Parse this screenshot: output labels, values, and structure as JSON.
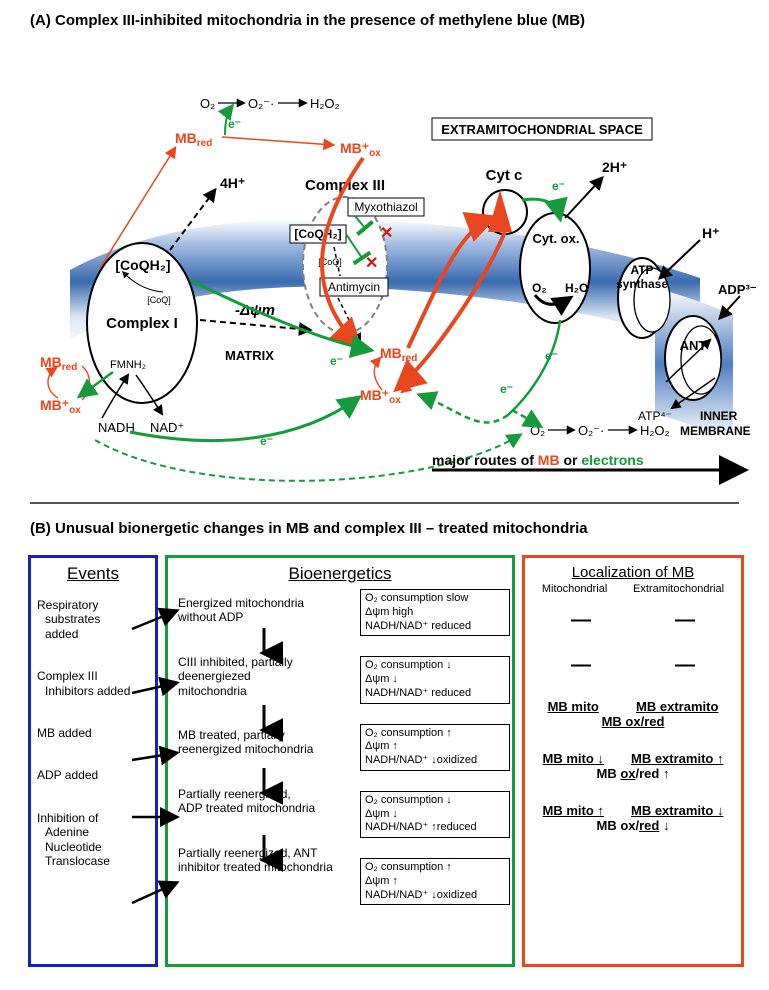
{
  "panelA": {
    "title": "(A)   Complex III-inhibited mitochondria in the presence of methylene blue (MB)",
    "labels": {
      "extra_space": "EXTRAMITOCHONDRIAL SPACE",
      "matrix": "MATRIX",
      "inner_membrane": "INNER\nMEMBRANE",
      "complexI": "Complex I",
      "complexIII": "Complex III",
      "cytc": "Cyt c",
      "cytox": "Cyt. ox.",
      "atp_synthase": "ATP\nsynthase",
      "ant": "ANT",
      "coqh2_a": "[CoQH₂]",
      "coq_small_a": "[CoQ]",
      "coqh2_b": "[CoQH₂]",
      "coq_small_b": "[CoQ]",
      "myxothiazol": "Myxothiazol",
      "antimycin": "Antimycin",
      "dpsim": "-Δψm",
      "fmnh2": "FMNH₂",
      "nadh": "NADH",
      "nad": "NAD⁺",
      "o2_top": "O₂",
      "o2m_top": "O₂⁻·",
      "h2o2_top": "H₂O₂",
      "o2_bot": "O₂",
      "o2m_bot": "O₂⁻·",
      "h2o2_bot": "H₂O₂",
      "o2_cytox": "O₂",
      "h2o_cytox": "H₂O",
      "h4": "4H⁺",
      "h2": "2H⁺",
      "h1": "H⁺",
      "adp": "ADP³⁻",
      "atp": "ATP⁴⁻",
      "e": "e⁻",
      "mb_red": "MBred",
      "mb_ox": "MB⁺ox",
      "legend_pre": "major routes of ",
      "legend_mb": "MB",
      "legend_mid": " or ",
      "legend_e": "electrons"
    },
    "colors": {
      "membrane_top": "#9db8e0",
      "membrane_mid": "#3a6bb0",
      "membrane_bot": "#eef3fb",
      "mb": "#e8471f",
      "electron": "#159a3c",
      "text": "#000000",
      "gray": "#808080",
      "xmark": "#d11414",
      "inhibitor": "#159a3c"
    }
  },
  "panelB": {
    "title": "(B)   Unusual bionergetic changes in MB and complex III – treated mitochondria",
    "colors": {
      "events_border": "#1420c8",
      "bio_border": "#159a3c",
      "loc_border": "#e8471f"
    },
    "events": {
      "head": "Events",
      "items": [
        "Respiratory\nsubstrates\nadded",
        "Complex III\nInhibitors added",
        "MB added",
        "ADP added",
        "Inhibition of\nAdenine\nNucleotide\nTranslocase"
      ]
    },
    "bioenergetics": {
      "head": "Bioenergetics",
      "states": [
        "Energized mitochondria\nwithout ADP",
        "CIII inhibited, partially\ndeenergiezed\nmitochondria",
        "MB treated, partially\nreenergized mitochondria",
        "Partially reenergized,\nADP treated mitochondria",
        "Partially reenergized, ANT\ninhibitor treated mitochondria"
      ],
      "boxes": [
        "O₂ consumption slow\nΔψm high\nNADH/NAD⁺ reduced",
        "O₂ consumption ↓\nΔψm ↓\nNADH/NAD⁺ reduced",
        "O₂ consumption ↑\nΔψm ↑\nNADH/NAD⁺ ↓oxidized",
        "O₂ consumption ↓\nΔψm ↓\nNADH/NAD⁺ ↑reduced",
        "O₂ consumption ↑\nΔψm ↑\nNADH/NAD⁺ ↓oxidized"
      ]
    },
    "localization": {
      "head": "Localization of MB",
      "sub1": "Mitochondrial",
      "sub2": "Extramitochondrial",
      "rows": [
        {
          "mito": "—",
          "extra": "—",
          "center": ""
        },
        {
          "mito": "—",
          "extra": "—",
          "center": ""
        },
        {
          "mito": "MB mito",
          "extra": "MB extramito",
          "center": "MB ox/red"
        },
        {
          "mito": "MB mito ↓",
          "extra": "MB extramito ↑",
          "center": "MB ox/red ↑",
          "ul": "ox"
        },
        {
          "mito": "MB mito ↑",
          "extra": "MB extramito ↓",
          "center": "MB ox/red ↓",
          "ul": "red"
        }
      ]
    }
  }
}
